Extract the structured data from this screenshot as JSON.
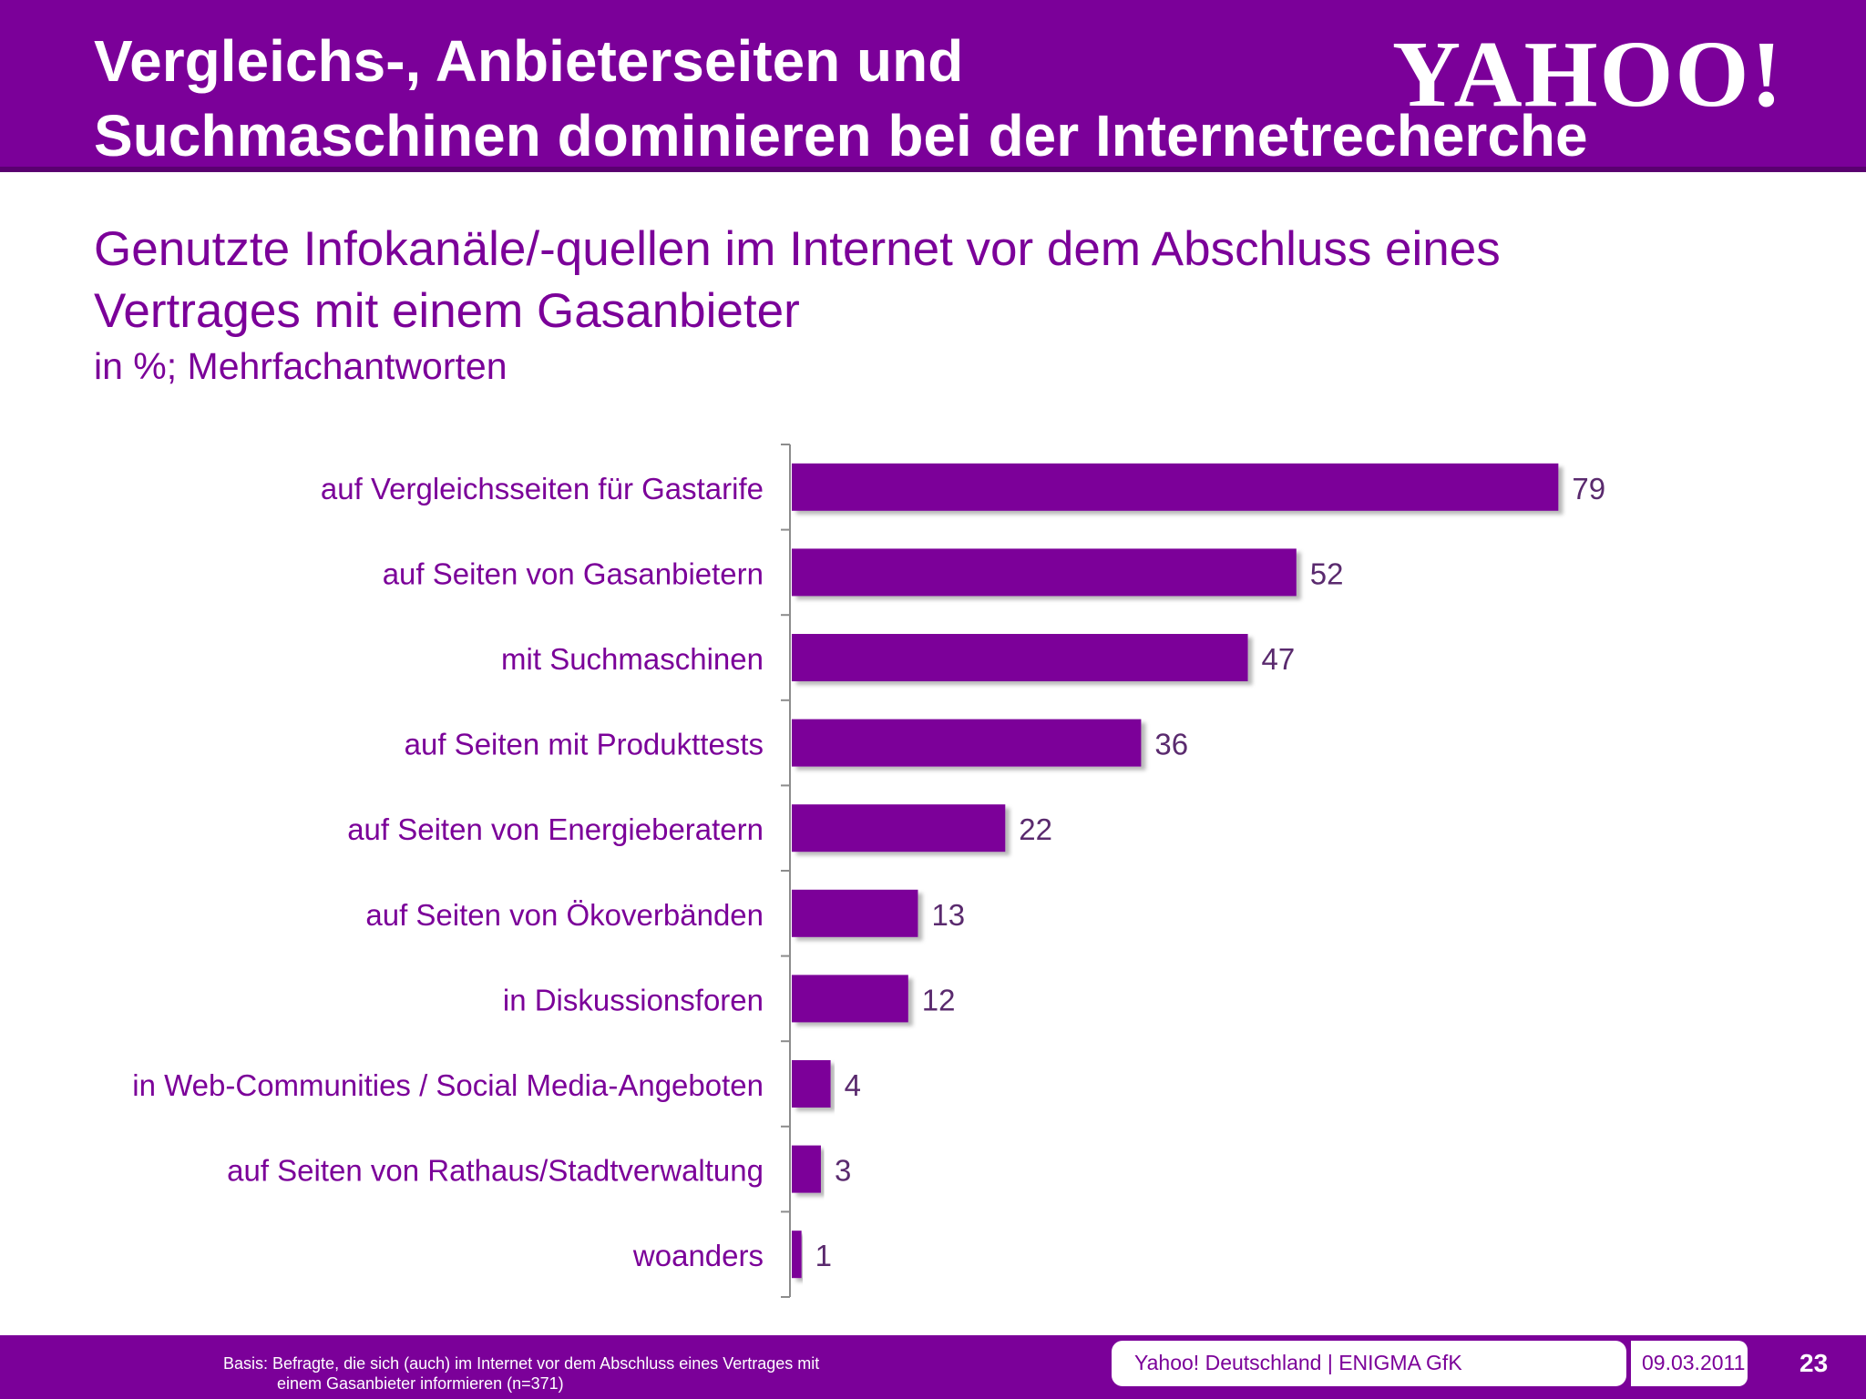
{
  "header": {
    "title_line1": "Vergleichs-, Anbieterseiten und",
    "title_line2": "Suchmaschinen dominieren bei der Internetrecherche",
    "logo": "YAHOO!"
  },
  "chart_heading": {
    "line1": "Genutzte Infokanäle/-quellen im Internet vor dem Abschluss eines",
    "line2": "Vertrages mit einem Gasanbieter",
    "note": "in %; Mehrfachantworten"
  },
  "chart_data": {
    "type": "bar",
    "orientation": "horizontal",
    "title": "Genutzte Infokanäle/-quellen im Internet vor dem Abschluss eines Vertrages mit einem Gasanbieter",
    "subtitle": "in %; Mehrfachantworten",
    "categories": [
      "auf Vergleichsseiten für Gastarife",
      "auf Seiten von Gasanbietern",
      "mit Suchmaschinen",
      "auf Seiten mit Produkttests",
      "auf Seiten von Energieberatern",
      "auf Seiten von Ökoverbänden",
      "in Diskussionsforen",
      "in Web-Communities / Social Media-Angeboten",
      "auf Seiten von Rathaus/Stadtverwaltung",
      "woanders"
    ],
    "values": [
      79,
      52,
      47,
      36,
      22,
      13,
      12,
      4,
      3,
      1
    ],
    "xlim": [
      0,
      100
    ],
    "grid": false,
    "color": "#7b0099"
  },
  "footer": {
    "basis_line1": "Basis:  Befragte, die sich (auch) im Internet vor dem Abschluss eines Vertrages mit",
    "basis_line2": "einem Gasanbieter informieren (n=371)",
    "source": "Yahoo! Deutschland | ENIGMA GfK",
    "date": "09.03.2011",
    "page": "23"
  },
  "colors": {
    "brand": "#7b0099",
    "label_text": "#7b0099",
    "value_text": "#5a2a6e"
  }
}
